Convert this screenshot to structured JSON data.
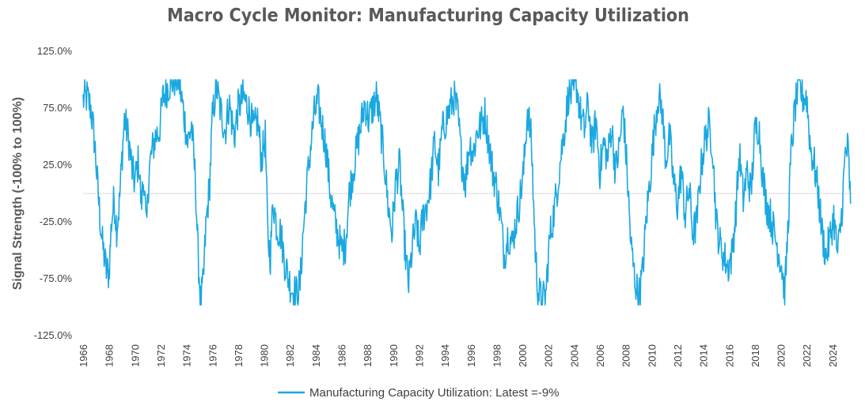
{
  "chart_data": {
    "type": "line",
    "title": "Macro Cycle Monitor: Manufacturing Capacity Utilization",
    "ylabel": "Signal Strength (-100% to 100%)",
    "xlabel": "",
    "ylim": [
      -125,
      125
    ],
    "xlim": [
      1966,
      2025.6
    ],
    "y_ticks": [
      "125.0%",
      "75.0%",
      "25.0%",
      "-25.0%",
      "-75.0%",
      "-125.0%"
    ],
    "x_ticks": [
      "1966",
      "1968",
      "1970",
      "1972",
      "1974",
      "1976",
      "1978",
      "1980",
      "1982",
      "1984",
      "1986",
      "1988",
      "1990",
      "1992",
      "1994",
      "1996",
      "1998",
      "2000",
      "2002",
      "2004",
      "2006",
      "2008",
      "2010",
      "2012",
      "2014",
      "2016",
      "2018",
      "2020",
      "2022",
      "2024"
    ],
    "legend_position": "bottom",
    "grid": false,
    "zero_line": true,
    "series": [
      {
        "name": "Manufacturing Capacity Utilization: Latest =-9%",
        "color": "#1aa8e0",
        "points": [
          [
            1966.0,
            82
          ],
          [
            1966.3,
            85
          ],
          [
            1966.6,
            75
          ],
          [
            1966.9,
            45
          ],
          [
            1967.1,
            10
          ],
          [
            1967.3,
            -20
          ],
          [
            1967.5,
            -45
          ],
          [
            1967.8,
            -68
          ],
          [
            1968.0,
            -70
          ],
          [
            1968.2,
            -25
          ],
          [
            1968.4,
            -5
          ],
          [
            1968.6,
            -30
          ],
          [
            1968.8,
            -10
          ],
          [
            1969.0,
            30
          ],
          [
            1969.2,
            65
          ],
          [
            1969.5,
            50
          ],
          [
            1969.8,
            20
          ],
          [
            1970.0,
            10
          ],
          [
            1970.3,
            30
          ],
          [
            1970.5,
            -10
          ],
          [
            1970.7,
            15
          ],
          [
            1970.9,
            -35
          ],
          [
            1971.1,
            20
          ],
          [
            1971.3,
            35
          ],
          [
            1971.6,
            50
          ],
          [
            1971.9,
            55
          ],
          [
            1972.2,
            85
          ],
          [
            1972.6,
            95
          ],
          [
            1973.0,
            100
          ],
          [
            1973.4,
            100
          ],
          [
            1973.8,
            70
          ],
          [
            1974.1,
            45
          ],
          [
            1974.4,
            60
          ],
          [
            1974.7,
            10
          ],
          [
            1974.9,
            -55
          ],
          [
            1975.1,
            -95
          ],
          [
            1975.3,
            -80
          ],
          [
            1975.5,
            -30
          ],
          [
            1975.8,
            10
          ],
          [
            1976.0,
            65
          ],
          [
            1976.3,
            95
          ],
          [
            1976.6,
            75
          ],
          [
            1977.0,
            55
          ],
          [
            1977.3,
            80
          ],
          [
            1977.7,
            50
          ],
          [
            1978.0,
            75
          ],
          [
            1978.4,
            85
          ],
          [
            1978.8,
            75
          ],
          [
            1979.2,
            55
          ],
          [
            1979.5,
            65
          ],
          [
            1979.8,
            30
          ],
          [
            1980.1,
            50
          ],
          [
            1980.3,
            -40
          ],
          [
            1980.5,
            -55
          ],
          [
            1980.7,
            -5
          ],
          [
            1981.0,
            -30
          ],
          [
            1981.3,
            -35
          ],
          [
            1981.6,
            -60
          ],
          [
            1981.9,
            -75
          ],
          [
            1982.2,
            -85
          ],
          [
            1982.5,
            -88
          ],
          [
            1982.8,
            -80
          ],
          [
            1983.0,
            -40
          ],
          [
            1983.3,
            5
          ],
          [
            1983.6,
            40
          ],
          [
            1983.9,
            70
          ],
          [
            1984.2,
            80
          ],
          [
            1984.5,
            60
          ],
          [
            1984.8,
            40
          ],
          [
            1985.1,
            5
          ],
          [
            1985.4,
            -20
          ],
          [
            1985.7,
            -35
          ],
          [
            1986.0,
            -50
          ],
          [
            1986.3,
            -45
          ],
          [
            1986.6,
            0
          ],
          [
            1986.9,
            20
          ],
          [
            1987.2,
            40
          ],
          [
            1987.5,
            60
          ],
          [
            1987.8,
            80
          ],
          [
            1988.1,
            65
          ],
          [
            1988.4,
            75
          ],
          [
            1988.7,
            85
          ],
          [
            1989.0,
            60
          ],
          [
            1989.3,
            30
          ],
          [
            1989.6,
            -10
          ],
          [
            1989.9,
            -35
          ],
          [
            1990.2,
            10
          ],
          [
            1990.5,
            25
          ],
          [
            1990.8,
            -30
          ],
          [
            1991.0,
            -60
          ],
          [
            1991.2,
            -80
          ],
          [
            1991.5,
            -45
          ],
          [
            1991.8,
            -25
          ],
          [
            1992.0,
            -50
          ],
          [
            1992.3,
            -20
          ],
          [
            1992.6,
            -10
          ],
          [
            1992.9,
            10
          ],
          [
            1993.2,
            45
          ],
          [
            1993.5,
            20
          ],
          [
            1993.8,
            55
          ],
          [
            1994.1,
            65
          ],
          [
            1994.4,
            75
          ],
          [
            1994.7,
            85
          ],
          [
            1995.0,
            70
          ],
          [
            1995.3,
            30
          ],
          [
            1995.6,
            10
          ],
          [
            1995.9,
            45
          ],
          [
            1996.2,
            35
          ],
          [
            1996.5,
            55
          ],
          [
            1996.8,
            60
          ],
          [
            1997.1,
            70
          ],
          [
            1997.4,
            45
          ],
          [
            1997.7,
            20
          ],
          [
            1998.0,
            5
          ],
          [
            1998.3,
            -20
          ],
          [
            1998.6,
            -55
          ],
          [
            1998.9,
            -35
          ],
          [
            1999.2,
            -45
          ],
          [
            1999.5,
            -25
          ],
          [
            1999.8,
            -5
          ],
          [
            2000.1,
            20
          ],
          [
            2000.4,
            75
          ],
          [
            2000.7,
            45
          ],
          [
            2001.0,
            -50
          ],
          [
            2001.2,
            -85
          ],
          [
            2001.5,
            -95
          ],
          [
            2001.8,
            -90
          ],
          [
            2002.1,
            -40
          ],
          [
            2002.4,
            -20
          ],
          [
            2002.7,
            5
          ],
          [
            2003.0,
            35
          ],
          [
            2003.3,
            60
          ],
          [
            2003.6,
            90
          ],
          [
            2003.9,
            85
          ],
          [
            2004.2,
            95
          ],
          [
            2004.5,
            70
          ],
          [
            2004.8,
            55
          ],
          [
            2005.1,
            80
          ],
          [
            2005.4,
            40
          ],
          [
            2005.7,
            65
          ],
          [
            2006.0,
            20
          ],
          [
            2006.3,
            45
          ],
          [
            2006.6,
            30
          ],
          [
            2006.9,
            60
          ],
          [
            2007.2,
            20
          ],
          [
            2007.5,
            40
          ],
          [
            2007.8,
            75
          ],
          [
            2008.1,
            20
          ],
          [
            2008.4,
            -45
          ],
          [
            2008.7,
            -75
          ],
          [
            2009.0,
            -92
          ],
          [
            2009.3,
            -70
          ],
          [
            2009.6,
            -20
          ],
          [
            2009.9,
            15
          ],
          [
            2010.2,
            55
          ],
          [
            2010.5,
            85
          ],
          [
            2010.8,
            75
          ],
          [
            2011.1,
            30
          ],
          [
            2011.4,
            50
          ],
          [
            2011.7,
            10
          ],
          [
            2012.0,
            -10
          ],
          [
            2012.3,
            20
          ],
          [
            2012.6,
            -20
          ],
          [
            2012.9,
            5
          ],
          [
            2013.2,
            -35
          ],
          [
            2013.5,
            -25
          ],
          [
            2013.8,
            20
          ],
          [
            2014.1,
            45
          ],
          [
            2014.4,
            60
          ],
          [
            2014.7,
            45
          ],
          [
            2015.0,
            -25
          ],
          [
            2015.3,
            -45
          ],
          [
            2015.6,
            -55
          ],
          [
            2015.9,
            -65
          ],
          [
            2016.2,
            -55
          ],
          [
            2016.5,
            -20
          ],
          [
            2016.8,
            35
          ],
          [
            2017.1,
            -5
          ],
          [
            2017.4,
            20
          ],
          [
            2017.7,
            0
          ],
          [
            2018.0,
            55
          ],
          [
            2018.3,
            60
          ],
          [
            2018.6,
            15
          ],
          [
            2018.9,
            -10
          ],
          [
            2019.2,
            -20
          ],
          [
            2019.5,
            -35
          ],
          [
            2019.8,
            -50
          ],
          [
            2020.1,
            -65
          ],
          [
            2020.3,
            -90
          ],
          [
            2020.5,
            -45
          ],
          [
            2020.8,
            35
          ],
          [
            2021.1,
            75
          ],
          [
            2021.4,
            95
          ],
          [
            2021.7,
            85
          ],
          [
            2022.0,
            85
          ],
          [
            2022.3,
            40
          ],
          [
            2022.6,
            25
          ],
          [
            2022.9,
            0
          ],
          [
            2023.2,
            -35
          ],
          [
            2023.5,
            -55
          ],
          [
            2023.8,
            -40
          ],
          [
            2024.1,
            -20
          ],
          [
            2024.4,
            -55
          ],
          [
            2024.7,
            -20
          ],
          [
            2025.0,
            35
          ],
          [
            2025.2,
            40
          ],
          [
            2025.4,
            -9
          ]
        ]
      }
    ]
  }
}
